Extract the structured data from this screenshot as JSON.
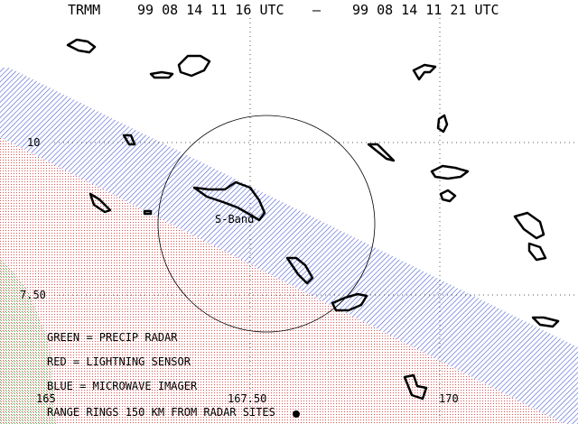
{
  "header": {
    "satellite": "TRMM",
    "start_time": "99 08 14 11 16 UTC",
    "separator": "—",
    "end_time": "99 08 14 11 21 UTC"
  },
  "latitude_labels": [
    "10",
    "7.50"
  ],
  "longitude_labels": [
    "165",
    "167.50",
    "170"
  ],
  "site_label": "S-Band",
  "legend": [
    "GREEN = PRECIP RADAR",
    "RED = LIGHTNING SENSOR",
    "BLUE = MICROWAVE IMAGER",
    "RANGE RINGS 150 KM FROM RADAR SITES"
  ]
}
